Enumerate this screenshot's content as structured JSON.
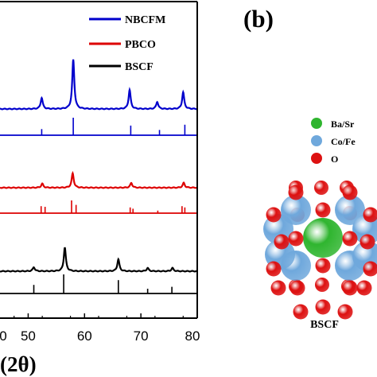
{
  "chart_data": {
    "type": "line",
    "xlabel": "(2θ)",
    "xlim": [
      45,
      80
    ],
    "x_ticks": [
      50,
      60,
      70,
      80
    ],
    "x_tick_labels": [
      "50",
      "60",
      "70",
      "80"
    ],
    "partial_tick_label": "0",
    "grid": false,
    "legend_position": "top-right",
    "series": [
      {
        "name": "NBCFM",
        "color": "#0000cc",
        "pattern": {
          "baseline": 0,
          "peaks": [
            {
              "x": 52.4,
              "y": 0.14
            },
            {
              "x": 58.0,
              "y": 0.62
            },
            {
              "x": 68.0,
              "y": 0.24
            },
            {
              "x": 72.9,
              "y": 0.09
            },
            {
              "x": 77.5,
              "y": 0.21
            }
          ]
        },
        "reference_sticks": [
          {
            "x": 52.4,
            "h": 0.35
          },
          {
            "x": 58.0,
            "h": 1.0
          },
          {
            "x": 68.2,
            "h": 0.55
          },
          {
            "x": 73.3,
            "h": 0.3
          },
          {
            "x": 77.8,
            "h": 0.6
          }
        ]
      },
      {
        "name": "PBCO",
        "color": "#dd0000",
        "pattern": {
          "baseline": 0,
          "peaks": [
            {
              "x": 52.5,
              "y": 0.05
            },
            {
              "x": 57.9,
              "y": 0.18
            },
            {
              "x": 68.3,
              "y": 0.06
            },
            {
              "x": 77.6,
              "y": 0.06
            }
          ]
        },
        "reference_sticks": [
          {
            "x": 52.3,
            "h": 0.55
          },
          {
            "x": 53.0,
            "h": 0.5
          },
          {
            "x": 57.7,
            "h": 1.0
          },
          {
            "x": 58.5,
            "h": 0.65
          },
          {
            "x": 68.1,
            "h": 0.45
          },
          {
            "x": 68.6,
            "h": 0.35
          },
          {
            "x": 73.0,
            "h": 0.2
          },
          {
            "x": 77.3,
            "h": 0.55
          },
          {
            "x": 77.8,
            "h": 0.45
          }
        ]
      },
      {
        "name": "BSCF",
        "color": "#000000",
        "pattern": {
          "baseline": 0,
          "peaks": [
            {
              "x": 51.0,
              "y": 0.05
            },
            {
              "x": 56.5,
              "y": 0.3
            },
            {
              "x": 66.0,
              "y": 0.15
            },
            {
              "x": 71.2,
              "y": 0.04
            },
            {
              "x": 75.6,
              "y": 0.04
            }
          ]
        },
        "reference_sticks": [
          {
            "x": 51.0,
            "h": 0.45
          },
          {
            "x": 56.3,
            "h": 1.0
          },
          {
            "x": 66.0,
            "h": 0.7
          },
          {
            "x": 71.2,
            "h": 0.25
          },
          {
            "x": 75.5,
            "h": 0.35
          }
        ]
      }
    ]
  },
  "panel_b": {
    "label": "(b)",
    "structure_title": "BSCF",
    "legend": [
      {
        "label": "Ba/Sr",
        "color": "#2fb52f"
      },
      {
        "label": "Co/Fe",
        "color": "#6fa8dc"
      },
      {
        "label": "O",
        "color": "#dd1111"
      }
    ]
  }
}
